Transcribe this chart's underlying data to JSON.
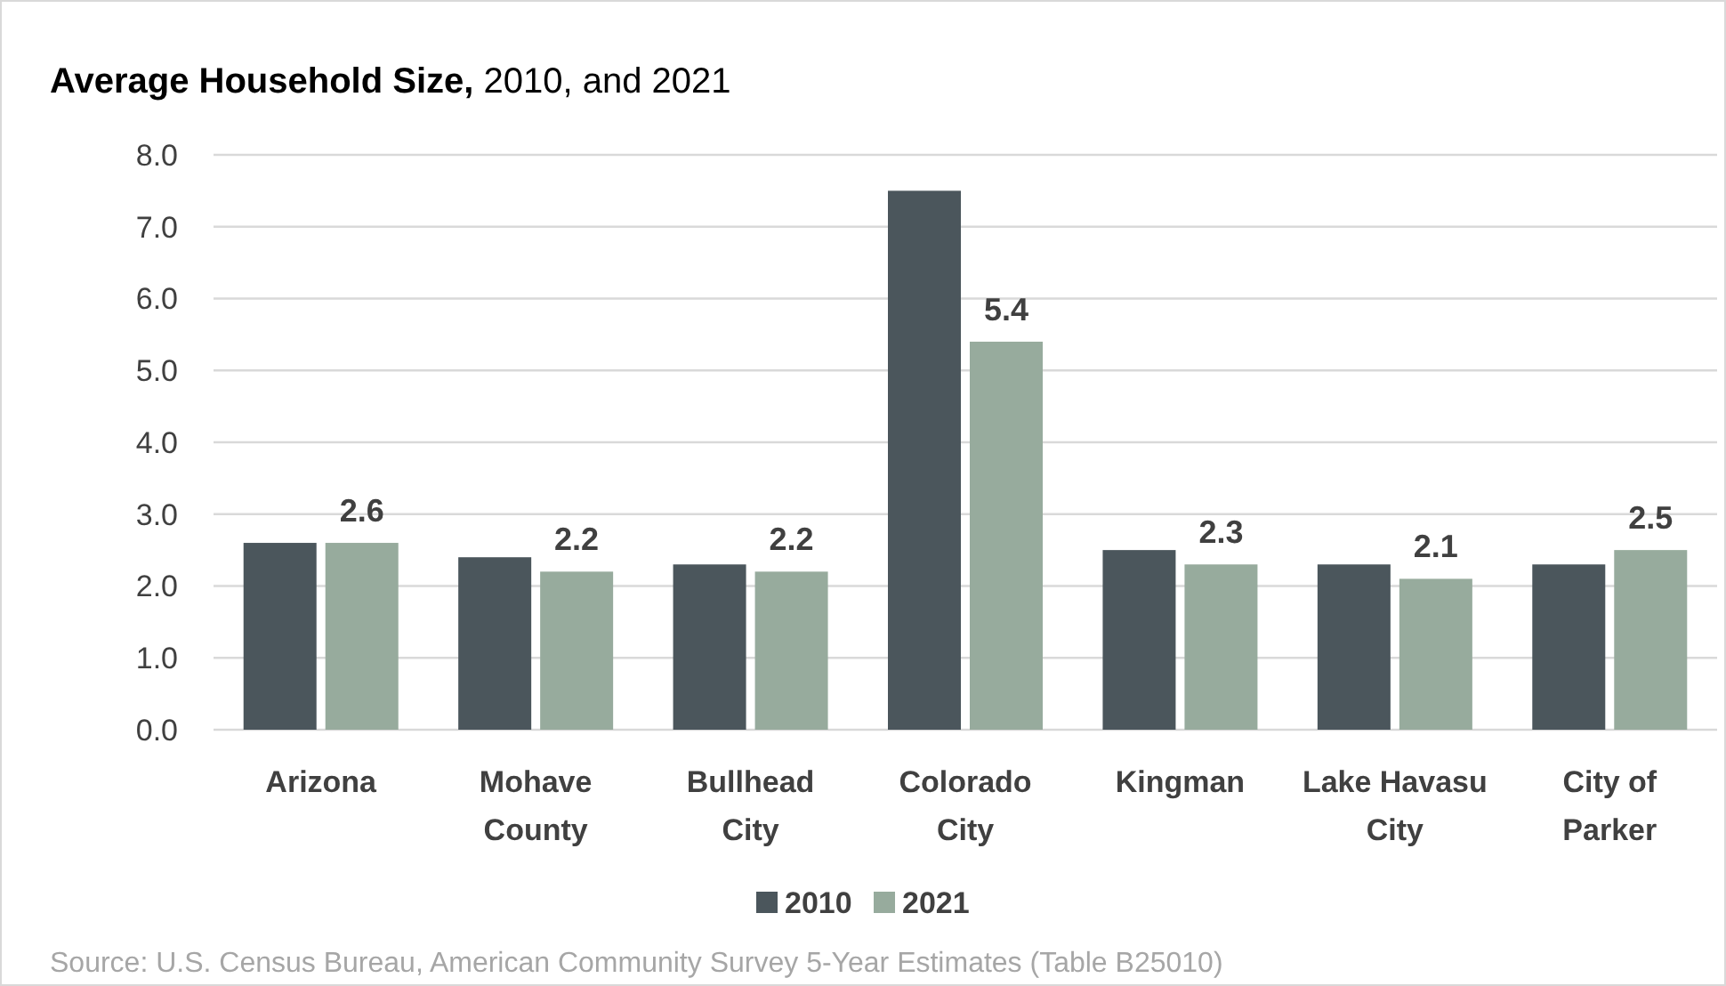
{
  "chart_data": {
    "type": "bar",
    "title": "Average Household Size, 2010, and 2021",
    "categories": [
      "Arizona",
      "Mohave County",
      "Bullhead City",
      "Colorado City",
      "Kingman",
      "Lake Havasu City",
      "City of Parker"
    ],
    "series": [
      {
        "name": "2010",
        "color": "#4b565c",
        "values": [
          2.6,
          2.4,
          2.3,
          7.5,
          2.5,
          2.3,
          2.3
        ]
      },
      {
        "name": "2021",
        "color": "#97ab9d",
        "values": [
          2.6,
          2.2,
          2.2,
          5.4,
          2.3,
          2.1,
          2.5
        ],
        "value_labels": [
          "2.6",
          "2.2",
          "2.2",
          "5.4",
          "2.3",
          "2.1",
          "2.5"
        ]
      }
    ],
    "ylim": [
      0,
      8
    ],
    "yticks": [
      {
        "value": 0,
        "label": "0.0"
      },
      {
        "value": 1,
        "label": "1.0"
      },
      {
        "value": 2,
        "label": "2.0"
      },
      {
        "value": 3,
        "label": "3.0"
      },
      {
        "value": 4,
        "label": "4.0"
      },
      {
        "value": 5,
        "label": "5.0"
      },
      {
        "value": 6,
        "label": "6.0"
      },
      {
        "value": 7,
        "label": "7.0"
      },
      {
        "value": 8,
        "label": "8.0"
      }
    ],
    "grid": "y",
    "legend": "bottom",
    "annotations": [
      "Source: U.S. Census Bureau, American Community Survey 5-Year Estimates (Table B25010)"
    ]
  }
}
